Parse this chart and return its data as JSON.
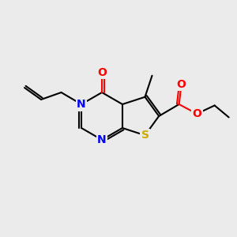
{
  "bg_color": "#ebebeb",
  "atom_colors": {
    "C": "#000000",
    "N": "#0000ff",
    "O": "#ff0000",
    "S": "#ccaa00"
  },
  "bond_color": "#000000",
  "bond_width": 1.5,
  "font_size_atom": 10
}
